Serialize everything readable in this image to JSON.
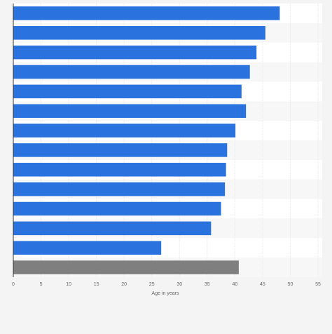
{
  "chart_data": {
    "type": "bar",
    "orientation": "horizontal",
    "categories": [
      null,
      null,
      null,
      null,
      null,
      null,
      null,
      null,
      null,
      null,
      null,
      null,
      null,
      null
    ],
    "values": [
      48.1,
      45.5,
      43.9,
      42.7,
      41.2,
      42.0,
      40.1,
      38.6,
      38.4,
      38.2,
      37.5,
      35.7,
      26.7,
      40.7
    ],
    "colors": [
      "#2a72de",
      "#2a72de",
      "#2a72de",
      "#2a72de",
      "#2a72de",
      "#2a72de",
      "#2a72de",
      "#2a72de",
      "#2a72de",
      "#2a72de",
      "#2a72de",
      "#2a72de",
      "#2a72de",
      "#7f7f7f"
    ],
    "xlabel": "Age in years",
    "xlim": [
      0,
      55
    ],
    "xticks": [
      0,
      5,
      10,
      15,
      20,
      25,
      30,
      35,
      40,
      45,
      50,
      55
    ],
    "grid": true
  }
}
